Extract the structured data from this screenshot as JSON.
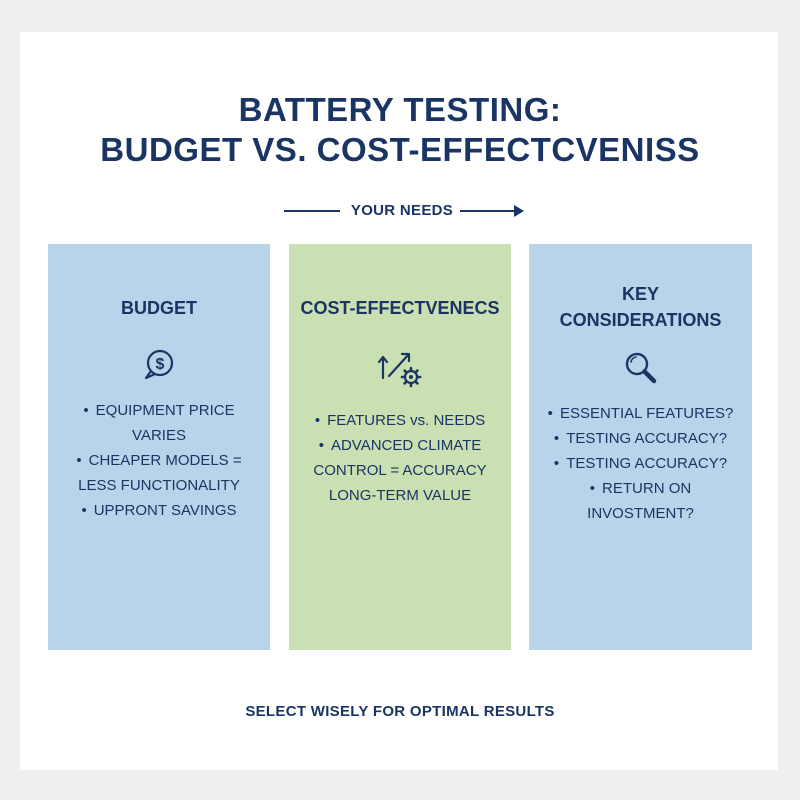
{
  "title": {
    "line1": "BATTERY TESTING:",
    "line2": "BUDGET VS. COST-EFFECTCVENISS"
  },
  "needs_label": "YOUR NEEDS",
  "colors": {
    "navy": "#1a3563",
    "blue_panel": "#b8d4ea",
    "green_panel": "#cadfb2"
  },
  "panels": [
    {
      "heading": "BUDGET",
      "icon": "dollar-speech-bubble-icon",
      "items": [
        "EQUIPMENT PRICE VARIES",
        "CHEAPER MODELS = LESS FUNCTIONALITY",
        "UPPRONT SAVINGS"
      ]
    },
    {
      "heading": "COST-EFFECTVENECS",
      "icon": "growth-arrow-gear-icon",
      "items": [
        "FEATURES vs. NEEDS",
        "ADVANCED CLIMATE CONTROL = ACCURACY LONG-TERM VALUE"
      ]
    },
    {
      "heading_line1": "KEY",
      "heading_line2": "CONSIDERATIONS",
      "icon": "magnifying-glass-icon",
      "items": [
        "ESSENTIAL FEATURES?",
        "TESTING ACCURACY?",
        "TESTING ACCURACY?",
        "RETURN ON INVOSTMENT?"
      ]
    }
  ],
  "footer": "SELECT WISELY FOR OPTIMAL RESULTS"
}
